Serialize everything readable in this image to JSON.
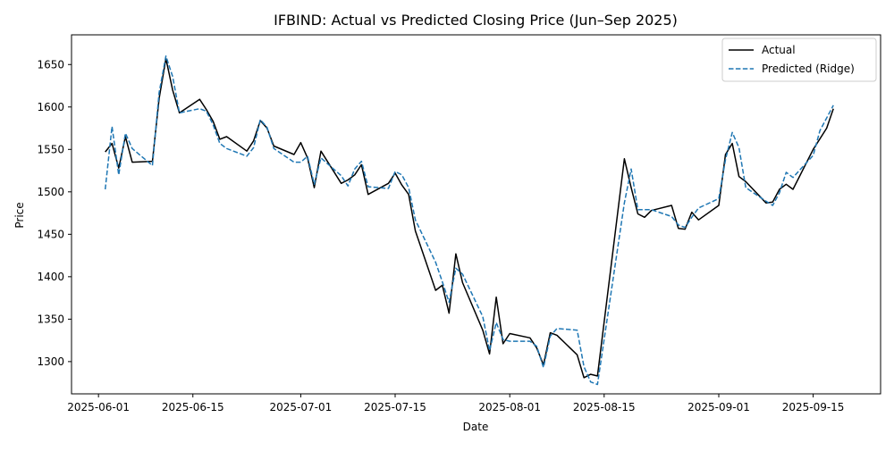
{
  "chart_data": {
    "type": "line",
    "title": "IFBIND: Actual vs Predicted Closing Price (Jun–Sep 2025)",
    "xlabel": "Date",
    "ylabel": "Price",
    "x_range": [
      "2025-05-28",
      "2025-09-25"
    ],
    "ylim": [
      1262,
      1685
    ],
    "x_ticks": [
      "2025-06-01",
      "2025-06-15",
      "2025-07-01",
      "2025-07-15",
      "2025-08-01",
      "2025-08-15",
      "2025-09-01",
      "2025-09-15"
    ],
    "y_ticks": [
      1300,
      1350,
      1400,
      1450,
      1500,
      1550,
      1600,
      1650
    ],
    "grid": false,
    "legend_placement": "top-right",
    "series": [
      {
        "name": "Actual",
        "color": "#000000",
        "style": "solid",
        "points": [
          [
            "2025-06-02",
            1547
          ],
          [
            "2025-06-03",
            1557
          ],
          [
            "2025-06-04",
            1528
          ],
          [
            "2025-06-05",
            1565
          ],
          [
            "2025-06-06",
            1535
          ],
          [
            "2025-06-09",
            1536
          ],
          [
            "2025-06-10",
            1610
          ],
          [
            "2025-06-11",
            1657
          ],
          [
            "2025-06-12",
            1620
          ],
          [
            "2025-06-13",
            1593
          ],
          [
            "2025-06-16",
            1609
          ],
          [
            "2025-06-17",
            1597
          ],
          [
            "2025-06-18",
            1583
          ],
          [
            "2025-06-19",
            1562
          ],
          [
            "2025-06-20",
            1565
          ],
          [
            "2025-06-23",
            1548
          ],
          [
            "2025-06-24",
            1560
          ],
          [
            "2025-06-25",
            1584
          ],
          [
            "2025-06-26",
            1575
          ],
          [
            "2025-06-27",
            1554
          ],
          [
            "2025-06-30",
            1544
          ],
          [
            "2025-07-01",
            1558
          ],
          [
            "2025-07-02",
            1540
          ],
          [
            "2025-07-03",
            1505
          ],
          [
            "2025-07-04",
            1548
          ],
          [
            "2025-07-07",
            1510
          ],
          [
            "2025-07-08",
            1514
          ],
          [
            "2025-07-09",
            1520
          ],
          [
            "2025-07-10",
            1532
          ],
          [
            "2025-07-11",
            1497
          ],
          [
            "2025-07-14",
            1510
          ],
          [
            "2025-07-15",
            1522
          ],
          [
            "2025-07-16",
            1508
          ],
          [
            "2025-07-17",
            1497
          ],
          [
            "2025-07-18",
            1454
          ],
          [
            "2025-07-21",
            1384
          ],
          [
            "2025-07-22",
            1390
          ],
          [
            "2025-07-23",
            1357
          ],
          [
            "2025-07-24",
            1427
          ],
          [
            "2025-07-25",
            1393
          ],
          [
            "2025-07-28",
            1337
          ],
          [
            "2025-07-29",
            1309
          ],
          [
            "2025-07-30",
            1376
          ],
          [
            "2025-07-31",
            1321
          ],
          [
            "2025-08-01",
            1333
          ],
          [
            "2025-08-04",
            1328
          ],
          [
            "2025-08-05",
            1316
          ],
          [
            "2025-08-06",
            1296
          ],
          [
            "2025-08-07",
            1334
          ],
          [
            "2025-08-08",
            1331
          ],
          [
            "2025-08-11",
            1308
          ],
          [
            "2025-08-12",
            1281
          ],
          [
            "2025-08-13",
            1285
          ],
          [
            "2025-08-14",
            1283
          ],
          [
            "2025-08-18",
            1539
          ],
          [
            "2025-08-19",
            1505
          ],
          [
            "2025-08-20",
            1474
          ],
          [
            "2025-08-21",
            1470
          ],
          [
            "2025-08-22",
            1478
          ],
          [
            "2025-08-25",
            1484
          ],
          [
            "2025-08-26",
            1457
          ],
          [
            "2025-08-27",
            1456
          ],
          [
            "2025-08-28",
            1476
          ],
          [
            "2025-08-29",
            1467
          ],
          [
            "2025-09-01",
            1484
          ],
          [
            "2025-09-02",
            1544
          ],
          [
            "2025-09-03",
            1557
          ],
          [
            "2025-09-04",
            1518
          ],
          [
            "2025-09-05",
            1512
          ],
          [
            "2025-09-08",
            1487
          ],
          [
            "2025-09-09",
            1488
          ],
          [
            "2025-09-10",
            1503
          ],
          [
            "2025-09-11",
            1509
          ],
          [
            "2025-09-12",
            1503
          ],
          [
            "2025-09-15",
            1550
          ],
          [
            "2025-09-17",
            1575
          ],
          [
            "2025-09-18",
            1598
          ]
        ]
      },
      {
        "name": "Predicted (Ridge)",
        "color": "#1f77b4",
        "style": "dashed",
        "points": [
          [
            "2025-06-02",
            1503
          ],
          [
            "2025-06-03",
            1577
          ],
          [
            "2025-06-04",
            1520
          ],
          [
            "2025-06-05",
            1569
          ],
          [
            "2025-06-06",
            1551
          ],
          [
            "2025-06-09",
            1531
          ],
          [
            "2025-06-10",
            1617
          ],
          [
            "2025-06-11",
            1660
          ],
          [
            "2025-06-12",
            1636
          ],
          [
            "2025-06-13",
            1593
          ],
          [
            "2025-06-16",
            1598
          ],
          [
            "2025-06-17",
            1595
          ],
          [
            "2025-06-18",
            1579
          ],
          [
            "2025-06-19",
            1557
          ],
          [
            "2025-06-20",
            1551
          ],
          [
            "2025-06-23",
            1542
          ],
          [
            "2025-06-24",
            1552
          ],
          [
            "2025-06-25",
            1585
          ],
          [
            "2025-06-26",
            1576
          ],
          [
            "2025-06-27",
            1551
          ],
          [
            "2025-06-30",
            1535
          ],
          [
            "2025-07-01",
            1535
          ],
          [
            "2025-07-02",
            1542
          ],
          [
            "2025-07-03",
            1509
          ],
          [
            "2025-07-04",
            1540
          ],
          [
            "2025-07-07",
            1519
          ],
          [
            "2025-07-08",
            1507
          ],
          [
            "2025-07-09",
            1527
          ],
          [
            "2025-07-10",
            1536
          ],
          [
            "2025-07-11",
            1506
          ],
          [
            "2025-07-14",
            1504
          ],
          [
            "2025-07-15",
            1524
          ],
          [
            "2025-07-16",
            1520
          ],
          [
            "2025-07-17",
            1505
          ],
          [
            "2025-07-18",
            1467
          ],
          [
            "2025-07-21",
            1417
          ],
          [
            "2025-07-22",
            1394
          ],
          [
            "2025-07-23",
            1370
          ],
          [
            "2025-07-24",
            1410
          ],
          [
            "2025-07-25",
            1403
          ],
          [
            "2025-07-28",
            1353
          ],
          [
            "2025-07-29",
            1313
          ],
          [
            "2025-07-30",
            1346
          ],
          [
            "2025-07-31",
            1326
          ],
          [
            "2025-08-01",
            1324
          ],
          [
            "2025-08-04",
            1324
          ],
          [
            "2025-08-05",
            1318
          ],
          [
            "2025-08-06",
            1293
          ],
          [
            "2025-08-07",
            1330
          ],
          [
            "2025-08-08",
            1339
          ],
          [
            "2025-08-11",
            1337
          ],
          [
            "2025-08-12",
            1294
          ],
          [
            "2025-08-13",
            1276
          ],
          [
            "2025-08-14",
            1273
          ],
          [
            "2025-08-18",
            1487
          ],
          [
            "2025-08-19",
            1527
          ],
          [
            "2025-08-20",
            1479
          ],
          [
            "2025-08-21",
            1479
          ],
          [
            "2025-08-22",
            1479
          ],
          [
            "2025-08-25",
            1471
          ],
          [
            "2025-08-26",
            1461
          ],
          [
            "2025-08-27",
            1458
          ],
          [
            "2025-08-28",
            1470
          ],
          [
            "2025-08-29",
            1481
          ],
          [
            "2025-09-01",
            1492
          ],
          [
            "2025-09-02",
            1538
          ],
          [
            "2025-09-03",
            1570
          ],
          [
            "2025-09-04",
            1552
          ],
          [
            "2025-09-05",
            1505
          ],
          [
            "2025-09-08",
            1489
          ],
          [
            "2025-09-09",
            1484
          ],
          [
            "2025-09-10",
            1499
          ],
          [
            "2025-09-11",
            1523
          ],
          [
            "2025-09-12",
            1517
          ],
          [
            "2025-09-15",
            1543
          ],
          [
            "2025-09-16",
            1572
          ],
          [
            "2025-09-18",
            1602
          ]
        ]
      }
    ]
  }
}
